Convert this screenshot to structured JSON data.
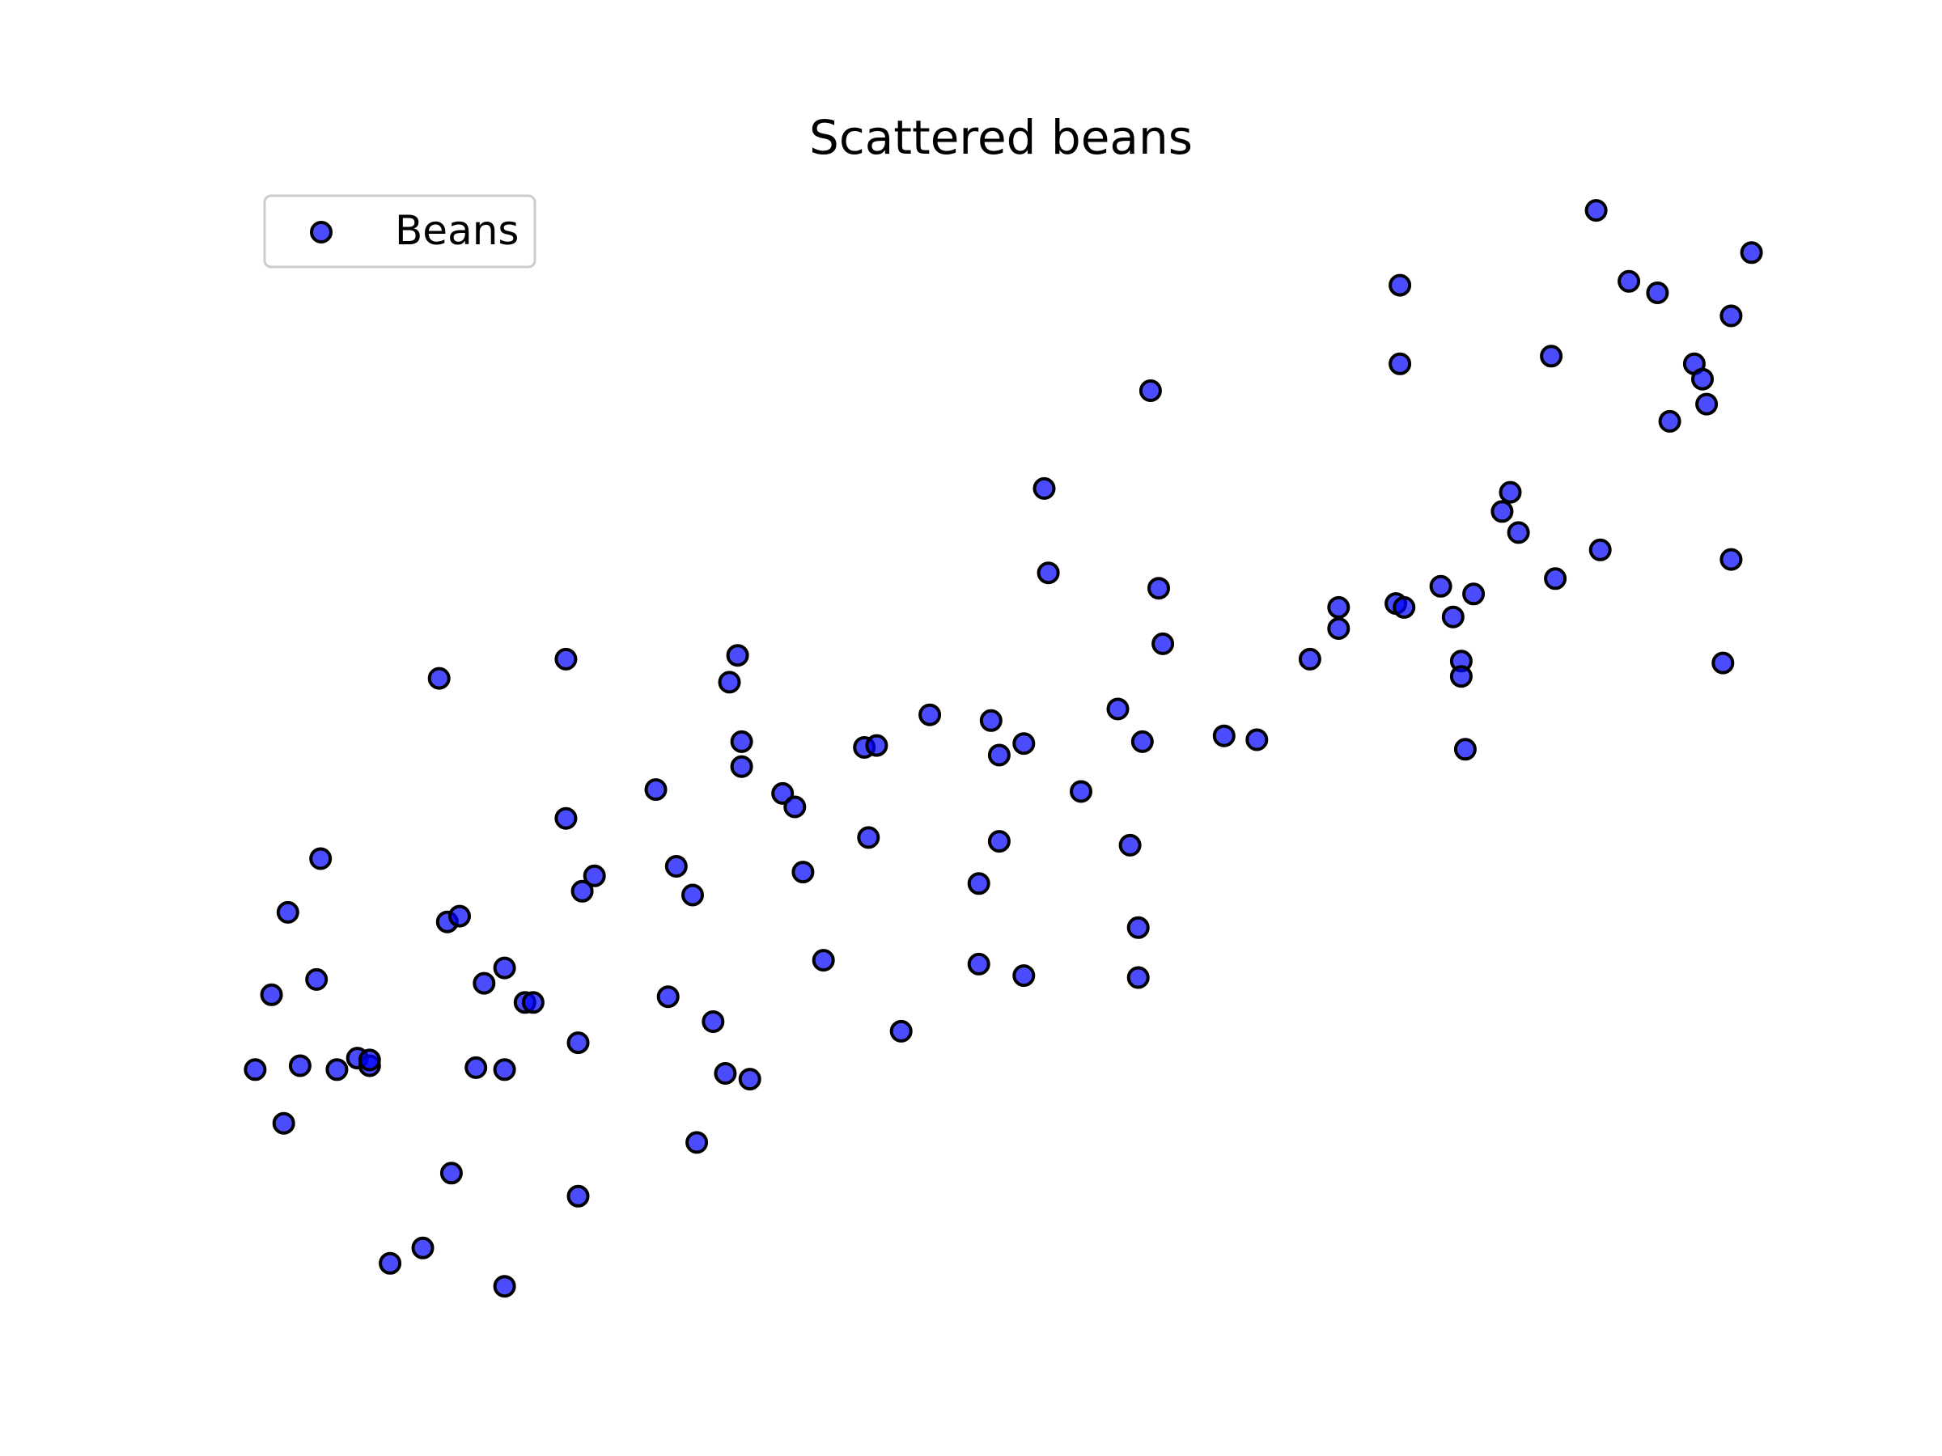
{
  "chart_data": {
    "type": "scatter",
    "title": "Scattered beans",
    "xlabel": "",
    "ylabel": "",
    "axes_visible": false,
    "grid": false,
    "legend_position": "upper left",
    "series": [
      {
        "name": "Beans",
        "color": "#0000ff",
        "edge_color": "#000000",
        "points": [
          [
            0.07,
            1.34
          ],
          [
            0.14,
            1.06
          ],
          [
            0.11,
            1.73
          ],
          [
            0.18,
            1.36
          ],
          [
            0.15,
            2.16
          ],
          [
            0.23,
            2.44
          ],
          [
            0.22,
            1.81
          ],
          [
            0.27,
            1.34
          ],
          [
            0.32,
            1.4
          ],
          [
            0.35,
            1.36
          ],
          [
            0.35,
            1.39
          ],
          [
            0.4,
            0.33
          ],
          [
            0.48,
            0.41
          ],
          [
            0.52,
            3.38
          ],
          [
            0.54,
            2.11
          ],
          [
            0.55,
            0.8
          ],
          [
            0.57,
            2.14
          ],
          [
            0.61,
            1.35
          ],
          [
            0.63,
            1.79
          ],
          [
            0.68,
            1.87
          ],
          [
            0.68,
            1.34
          ],
          [
            0.68,
            0.21
          ],
          [
            0.73,
            1.69
          ],
          [
            0.75,
            1.69
          ],
          [
            0.83,
            3.48
          ],
          [
            0.83,
            2.65
          ],
          [
            0.86,
            0.68
          ],
          [
            0.86,
            1.48
          ],
          [
            0.87,
            2.27
          ],
          [
            0.9,
            2.35
          ],
          [
            1.05,
            2.8
          ],
          [
            1.08,
            1.72
          ],
          [
            1.1,
            2.4
          ],
          [
            1.14,
            2.25
          ],
          [
            1.15,
            0.96
          ],
          [
            1.19,
            1.59
          ],
          [
            1.22,
            1.32
          ],
          [
            1.23,
            3.36
          ],
          [
            1.25,
            3.5
          ],
          [
            1.26,
            2.92
          ],
          [
            1.26,
            3.05
          ],
          [
            1.28,
            1.29
          ],
          [
            1.36,
            2.78
          ],
          [
            1.39,
            2.71
          ],
          [
            1.41,
            2.37
          ],
          [
            1.46,
            1.91
          ],
          [
            1.56,
            3.02
          ],
          [
            1.57,
            2.55
          ],
          [
            1.59,
            3.03
          ],
          [
            1.65,
            1.54
          ],
          [
            1.72,
            3.19
          ],
          [
            1.84,
            2.31
          ],
          [
            1.84,
            1.89
          ],
          [
            1.87,
            3.16
          ],
          [
            1.89,
            2.53
          ],
          [
            1.89,
            2.98
          ],
          [
            1.95,
            1.83
          ],
          [
            1.95,
            3.04
          ],
          [
            2.0,
            4.37
          ],
          [
            2.01,
            3.93
          ],
          [
            2.09,
            2.79
          ],
          [
            2.18,
            3.22
          ],
          [
            2.21,
            2.51
          ],
          [
            2.23,
            1.82
          ],
          [
            2.23,
            2.08
          ],
          [
            2.24,
            3.05
          ],
          [
            2.26,
            4.88
          ],
          [
            2.29,
            3.56
          ],
          [
            2.28,
            3.85
          ],
          [
            2.44,
            3.08
          ],
          [
            2.52,
            3.06
          ],
          [
            2.65,
            3.48
          ],
          [
            2.72,
            3.75
          ],
          [
            2.72,
            3.64
          ],
          [
            2.87,
            5.43
          ],
          [
            2.86,
            3.77
          ],
          [
            2.87,
            5.02
          ],
          [
            2.88,
            3.75
          ],
          [
            2.97,
            3.86
          ],
          [
            3.0,
            3.7
          ],
          [
            3.02,
            3.47
          ],
          [
            3.02,
            3.39
          ],
          [
            3.03,
            3.01
          ],
          [
            3.05,
            3.82
          ],
          [
            3.12,
            4.25
          ],
          [
            3.14,
            4.35
          ],
          [
            3.16,
            4.14
          ],
          [
            3.24,
            5.06
          ],
          [
            3.25,
            3.9
          ],
          [
            3.35,
            5.82
          ],
          [
            3.36,
            4.05
          ],
          [
            3.43,
            5.45
          ],
          [
            3.5,
            5.39
          ],
          [
            3.53,
            4.72
          ],
          [
            3.59,
            5.02
          ],
          [
            3.61,
            4.94
          ],
          [
            3.62,
            4.81
          ],
          [
            3.68,
            5.27
          ],
          [
            3.68,
            4.0
          ],
          [
            3.66,
            3.46
          ],
          [
            3.73,
            5.6
          ]
        ]
      }
    ],
    "xlim": [
      0.0,
      3.8
    ],
    "ylim": [
      0.0,
      6.2
    ]
  }
}
